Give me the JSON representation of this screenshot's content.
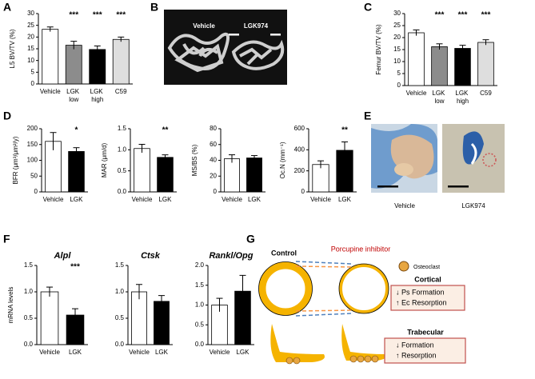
{
  "panel_labels": [
    "A",
    "B",
    "C",
    "D",
    "E",
    "F",
    "G"
  ],
  "chart_data": [
    {
      "type": "bar",
      "ylabel": "L5 BV/TV (%)",
      "categories": [
        "Vehicle",
        "LGK low",
        "LGK high",
        "C59"
      ],
      "values": [
        23.3,
        16.5,
        14.7,
        19.0
      ],
      "errors": [
        1.0,
        1.7,
        1.5,
        1.0
      ],
      "colors": [
        "#ffffff",
        "#8c8c8c",
        "#000000",
        "#dedede"
      ],
      "significance": [
        null,
        "***",
        "***",
        "***"
      ],
      "ylim": [
        0,
        30
      ],
      "yticks": [
        0,
        5,
        10,
        15,
        20,
        25,
        30
      ]
    },
    {
      "type": "bar",
      "ylabel": "Femur BV/TV (%)",
      "categories": [
        "Vehicle",
        "LGK low",
        "LGK high",
        "C59"
      ],
      "values": [
        22.0,
        16.2,
        15.5,
        18.0
      ],
      "errors": [
        1.2,
        1.2,
        1.3,
        1.1
      ],
      "colors": [
        "#ffffff",
        "#8c8c8c",
        "#000000",
        "#dedede"
      ],
      "significance": [
        null,
        "***",
        "***",
        "***"
      ],
      "ylim": [
        0,
        30
      ],
      "yticks": [
        0,
        5,
        10,
        15,
        20,
        25,
        30
      ]
    },
    {
      "type": "bar",
      "ylabel": "BFR (μm³/μm²/y)",
      "categories": [
        "Vehicle",
        "LGK"
      ],
      "values": [
        160,
        128
      ],
      "errors": [
        28,
        12
      ],
      "colors": [
        "#ffffff",
        "#000000"
      ],
      "significance": [
        null,
        "*"
      ],
      "ylim": [
        0,
        200
      ],
      "yticks": [
        0,
        50,
        100,
        150,
        200
      ]
    },
    {
      "type": "bar",
      "ylabel": "MAR (μm/d)",
      "categories": [
        "Vehicle",
        "LGK"
      ],
      "values": [
        1.03,
        0.82
      ],
      "errors": [
        0.1,
        0.06
      ],
      "colors": [
        "#ffffff",
        "#000000"
      ],
      "significance": [
        null,
        "**"
      ],
      "ylim": [
        0,
        1.5
      ],
      "yticks": [
        {
          "value": 0,
          "label": "0.0"
        },
        {
          "value": 0.5,
          "label": "0.5"
        },
        {
          "value": 1,
          "label": "1.0"
        },
        {
          "value": 1.5,
          "label": "1.5"
        }
      ]
    },
    {
      "type": "bar",
      "ylabel": "MS/BS (%)",
      "categories": [
        "Vehicle",
        "LGK"
      ],
      "values": [
        42,
        43
      ],
      "errors": [
        5,
        3
      ],
      "colors": [
        "#ffffff",
        "#000000"
      ],
      "significance": [
        null,
        null
      ],
      "ylim": [
        0,
        80
      ],
      "yticks": [
        0,
        20,
        40,
        60,
        80
      ]
    },
    {
      "type": "bar",
      "ylabel": "Oc.N (mm⁻¹)",
      "categories": [
        "Vehicle",
        "LGK"
      ],
      "values": [
        260,
        395
      ],
      "errors": [
        35,
        80
      ],
      "colors": [
        "#ffffff",
        "#000000"
      ],
      "significance": [
        null,
        "**"
      ],
      "ylim": [
        0,
        600
      ],
      "yticks": [
        0,
        200,
        400,
        600
      ]
    },
    {
      "type": "bar",
      "title": "Alpl",
      "ylabel": "mRNA levels",
      "categories": [
        "Vehicle",
        "LGK"
      ],
      "values": [
        1.0,
        0.56
      ],
      "errors": [
        0.09,
        0.12
      ],
      "colors": [
        "#ffffff",
        "#000000"
      ],
      "significance": [
        null,
        "***"
      ],
      "ylim": [
        0,
        1.5
      ],
      "yticks": [
        {
          "value": 0,
          "label": "0.0"
        },
        {
          "value": 0.5,
          "label": "0.5"
        },
        {
          "value": 1,
          "label": "1.0"
        },
        {
          "value": 1.5,
          "label": "1.5"
        }
      ]
    },
    {
      "type": "bar",
      "title": "Ctsk",
      "categories": [
        "Vehicle",
        "LGK"
      ],
      "values": [
        1.0,
        0.82
      ],
      "errors": [
        0.14,
        0.11
      ],
      "colors": [
        "#ffffff",
        "#000000"
      ],
      "significance": [
        null,
        null
      ],
      "ylim": [
        0,
        1.5
      ],
      "yticks": [
        {
          "value": 0,
          "label": "0.0"
        },
        {
          "value": 0.5,
          "label": "0.5"
        },
        {
          "value": 1,
          "label": "1.0"
        },
        {
          "value": 1.5,
          "label": "1.5"
        }
      ]
    },
    {
      "type": "bar",
      "title": "Rankl/Opg",
      "categories": [
        "Vehicle",
        "LGK"
      ],
      "values": [
        1.0,
        1.35
      ],
      "errors": [
        0.17,
        0.4
      ],
      "colors": [
        "#ffffff",
        "#000000"
      ],
      "significance": [
        null,
        null
      ],
      "ylim": [
        0,
        2
      ],
      "yticks": [
        {
          "value": 0,
          "label": "0.0"
        },
        {
          "value": 0.5,
          "label": "0.5"
        },
        {
          "value": 1,
          "label": "1.0"
        },
        {
          "value": 1.5,
          "label": "1.5"
        },
        {
          "value": 2,
          "label": "2.0"
        }
      ]
    }
  ],
  "images": {
    "b_left": "Vehicle",
    "b_right": "LGK974",
    "e_left": "Vehicle",
    "e_right": "LGK974"
  },
  "diagram": {
    "control": "Control",
    "treatment": "Porcupine inhibitor",
    "legend": "Osteoclast",
    "cortical": {
      "title": "Cortical",
      "lines": [
        "↓ Ps Formation",
        "↑ Ec Resorption"
      ]
    },
    "trabecular": {
      "title": "Trabecular",
      "lines": [
        "↓ Formation",
        "↑ Resorption"
      ]
    }
  }
}
